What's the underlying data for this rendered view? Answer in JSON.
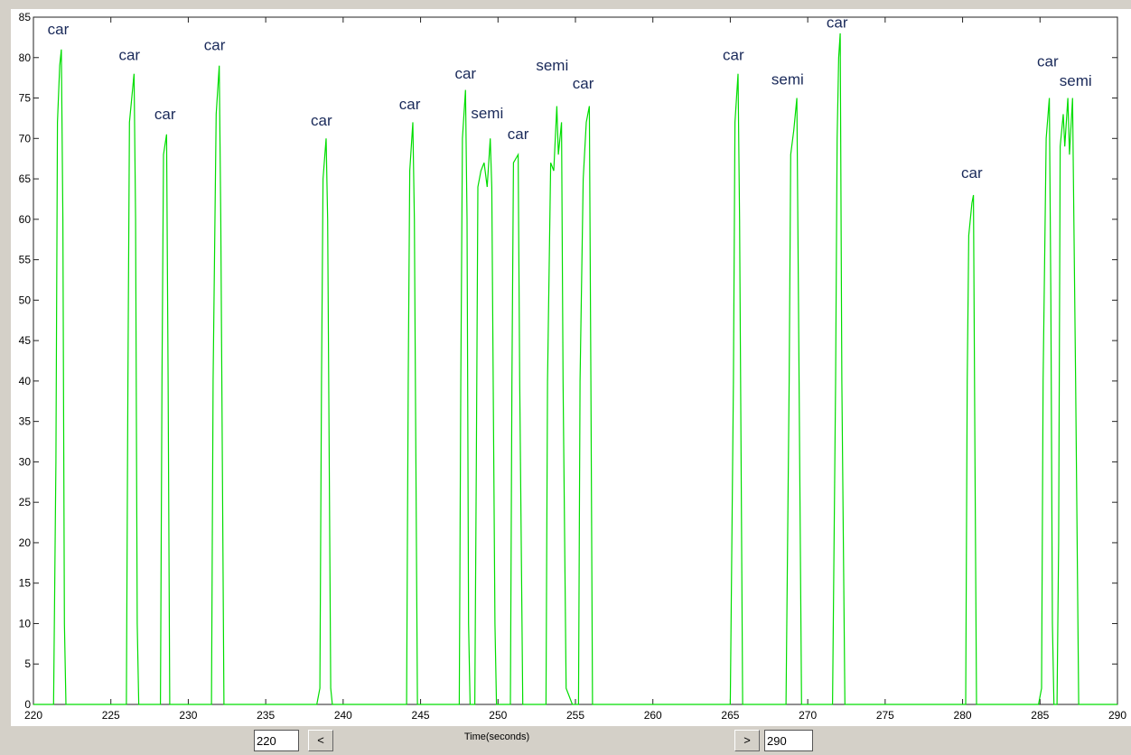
{
  "chart_data": {
    "type": "line",
    "x_label": "Time(seconds)",
    "x": [
      220,
      221.3,
      221.45,
      221.55,
      221.7,
      221.8,
      221.9,
      222.0,
      222.1,
      226.0,
      226.1,
      226.2,
      226.4,
      226.5,
      226.6,
      226.7,
      226.8,
      228.2,
      228.3,
      228.4,
      228.6,
      228.7,
      228.8,
      231.5,
      231.6,
      231.8,
      232.0,
      232.1,
      232.3,
      238.3,
      238.5,
      238.6,
      238.7,
      238.9,
      239.0,
      239.2,
      239.3,
      244.1,
      244.2,
      244.3,
      244.5,
      244.6,
      244.8,
      247.5,
      247.6,
      247.7,
      247.9,
      248.0,
      248.1,
      248.2,
      248.5,
      248.6,
      248.7,
      248.9,
      249.1,
      249.3,
      249.5,
      249.6,
      249.8,
      249.9,
      250.8,
      250.9,
      251.0,
      251.3,
      251.4,
      251.6,
      253.1,
      253.2,
      253.4,
      253.6,
      253.8,
      253.9,
      254.1,
      254.2,
      254.4,
      254.8,
      255.2,
      255.3,
      255.5,
      255.7,
      255.9,
      256.0,
      256.1,
      265.0,
      265.2,
      265.3,
      265.5,
      265.6,
      265.8,
      268.6,
      268.8,
      268.9,
      269.1,
      269.3,
      269.4,
      269.6,
      271.6,
      271.8,
      271.9,
      272.0,
      272.1,
      272.2,
      272.4,
      280.2,
      280.3,
      280.4,
      280.6,
      280.7,
      280.8,
      280.9,
      284.9,
      285.1,
      285.2,
      285.4,
      285.6,
      285.7,
      285.8,
      285.9,
      286.1,
      286.2,
      286.3,
      286.5,
      286.6,
      286.8,
      286.9,
      287.1,
      287.3,
      287.5,
      290
    ],
    "series": [
      {
        "color": "#00dd00",
        "values": [
          0,
          0,
          30,
          72,
          79,
          81,
          60,
          10,
          0,
          0,
          40,
          72,
          76,
          78,
          60,
          10,
          0,
          0,
          40,
          68,
          70.5,
          40,
          0,
          0,
          40,
          73,
          79,
          60,
          0,
          0,
          2,
          40,
          65,
          70,
          60,
          2,
          0,
          0,
          40,
          66,
          72,
          60,
          0,
          0,
          40,
          70,
          76,
          60,
          10,
          0,
          0,
          30,
          64,
          66,
          67,
          64,
          70,
          64,
          10,
          0,
          0,
          40,
          67,
          68,
          40,
          0,
          0,
          40,
          67,
          66,
          74,
          68,
          72,
          40,
          2,
          0,
          0,
          40,
          65,
          72,
          74,
          40,
          0,
          0,
          40,
          72,
          78,
          60,
          0,
          0,
          40,
          68,
          71,
          75,
          50,
          0,
          0,
          40,
          70,
          80,
          83,
          40,
          0,
          0,
          40,
          58,
          62,
          63,
          30,
          0,
          0,
          2,
          40,
          70,
          75,
          50,
          10,
          0,
          0,
          20,
          69,
          73,
          69,
          75,
          68,
          75,
          40,
          0,
          0
        ]
      }
    ],
    "annotations": [
      {
        "text": "car",
        "x": 221.6,
        "y": 82.9
      },
      {
        "text": "car",
        "x": 226.2,
        "y": 79.7
      },
      {
        "text": "car",
        "x": 228.5,
        "y": 72.4
      },
      {
        "text": "car",
        "x": 231.7,
        "y": 80.9
      },
      {
        "text": "car",
        "x": 238.6,
        "y": 71.6
      },
      {
        "text": "car",
        "x": 244.3,
        "y": 73.6
      },
      {
        "text": "car",
        "x": 247.9,
        "y": 77.4
      },
      {
        "text": "semi",
        "x": 249.3,
        "y": 72.5
      },
      {
        "text": "car",
        "x": 251.3,
        "y": 69.9
      },
      {
        "text": "semi",
        "x": 253.5,
        "y": 78.4
      },
      {
        "text": "car",
        "x": 255.5,
        "y": 76.2
      },
      {
        "text": "car",
        "x": 265.2,
        "y": 79.7
      },
      {
        "text": "semi",
        "x": 268.7,
        "y": 76.7
      },
      {
        "text": "car",
        "x": 271.9,
        "y": 83.7
      },
      {
        "text": "car",
        "x": 280.6,
        "y": 65.1
      },
      {
        "text": "car",
        "x": 285.5,
        "y": 78.9
      },
      {
        "text": "semi",
        "x": 287.3,
        "y": 76.5
      }
    ],
    "xlim": [
      220,
      290
    ],
    "xticks": [
      220,
      225,
      230,
      235,
      240,
      245,
      250,
      255,
      260,
      265,
      270,
      275,
      280,
      285,
      290
    ],
    "ylim": [
      0,
      85
    ],
    "yticks": [
      0,
      5,
      10,
      15,
      20,
      25,
      30,
      35,
      40,
      45,
      50,
      55,
      60,
      65,
      70,
      75,
      80,
      85
    ],
    "grid": false
  },
  "controls": {
    "start": "220",
    "prev": "<",
    "next": ">",
    "end": "290"
  }
}
